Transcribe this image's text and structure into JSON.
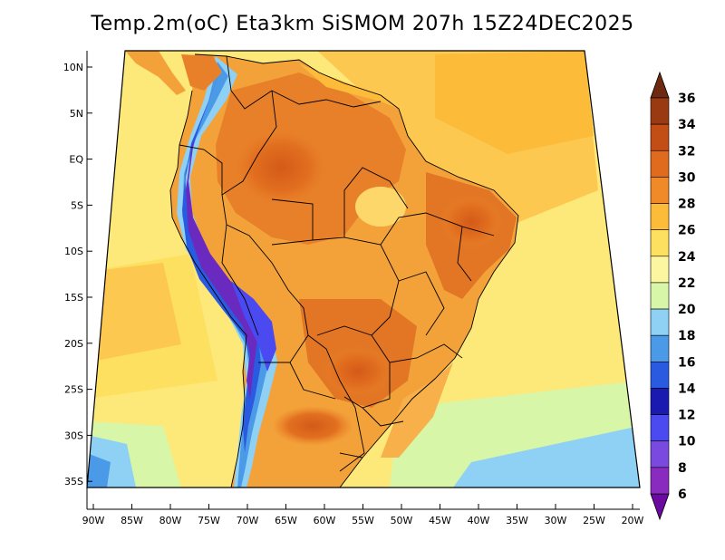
{
  "title": "Temp.2m(oC) Eta3km SiSMOM 207h 15Z24DEC2025",
  "map": {
    "variable": "2 m temperature",
    "units": "oC",
    "lat_labels": [
      "10N",
      "5N",
      "EQ",
      "5S",
      "10S",
      "15S",
      "20S",
      "25S",
      "30S",
      "35S"
    ],
    "lon_labels": [
      "90W",
      "85W",
      "80W",
      "75W",
      "70W",
      "65W",
      "60W",
      "55W",
      "50W",
      "45W",
      "40W",
      "35W",
      "30W",
      "25W",
      "20W"
    ]
  },
  "colorbar": {
    "levels": [
      "6",
      "8",
      "10",
      "12",
      "14",
      "16",
      "18",
      "20",
      "22",
      "24",
      "26",
      "28",
      "30",
      "32",
      "34",
      "36"
    ],
    "colors": [
      "#6a0aa0",
      "#8a2bc0",
      "#7a4ae0",
      "#4a4af0",
      "#1a1ab0",
      "#2a5ae0",
      "#4a9ae8",
      "#8fd0f5",
      "#d8f6a8",
      "#fdf6a0",
      "#fde060",
      "#fcbc3a",
      "#f08a28",
      "#e06a1e",
      "#c24e16",
      "#9a3a12",
      "#6e2a10"
    ]
  }
}
